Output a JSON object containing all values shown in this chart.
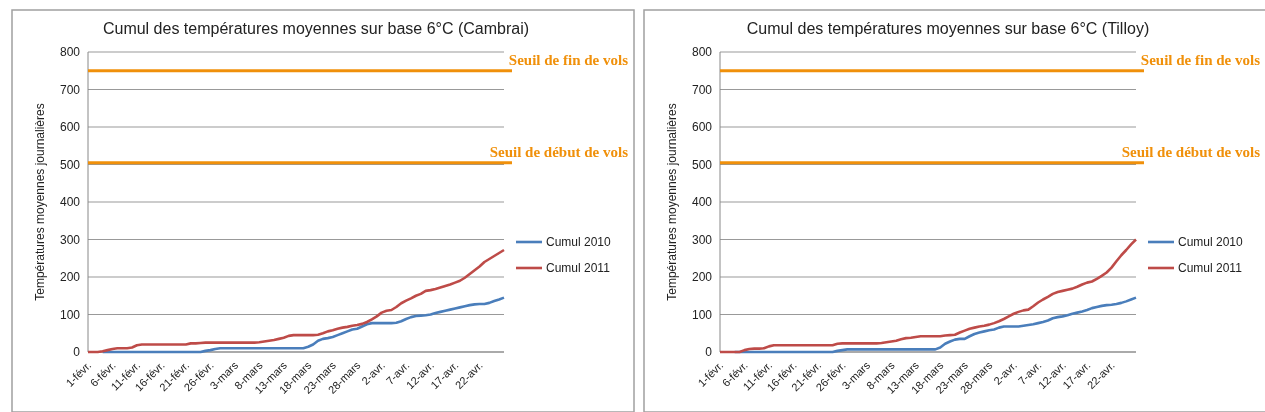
{
  "chart_data": [
    {
      "type": "line",
      "title": "Cumul des températures moyennes sur base 6°C (Cambrai)",
      "ylabel": "Températures moyennes journalières",
      "categories": [
        "1-févr.",
        null,
        null,
        null,
        null,
        "6-févr.",
        null,
        null,
        null,
        null,
        "11-févr.",
        null,
        null,
        null,
        null,
        "16-févr.",
        null,
        null,
        null,
        null,
        "21-févr.",
        null,
        null,
        null,
        null,
        "26-févr.",
        null,
        null,
        null,
        null,
        "3-mars",
        null,
        null,
        null,
        null,
        "8-mars",
        null,
        null,
        null,
        null,
        "13-mars",
        null,
        null,
        null,
        null,
        "18-mars",
        null,
        null,
        null,
        null,
        "23-mars",
        null,
        null,
        null,
        null,
        "28-mars",
        null,
        null,
        null,
        null,
        "2-avr.",
        null,
        null,
        null,
        null,
        "7-avr.",
        null,
        null,
        null,
        null,
        "12-avr.",
        null,
        null,
        null,
        null,
        "17-avr.",
        null,
        null,
        null,
        null,
        "22-avr.",
        null,
        null,
        null,
        null,
        null
      ],
      "series": [
        {
          "name": "Cumul 2010",
          "color": "#4a7ebb",
          "values": [
            null,
            null,
            null,
            0,
            0,
            0,
            0,
            0,
            0,
            0,
            0,
            0,
            0,
            0,
            0,
            0,
            0,
            0,
            0,
            0,
            0,
            0,
            0,
            0,
            3,
            5,
            8,
            10,
            10,
            10,
            10,
            10,
            10,
            10,
            10,
            10,
            10,
            10,
            10,
            10,
            10,
            10,
            10,
            10,
            10,
            14,
            20,
            30,
            35,
            37,
            40,
            45,
            50,
            55,
            60,
            62,
            68,
            74,
            77,
            77,
            77,
            77,
            77,
            78,
            82,
            88,
            93,
            96,
            97,
            98,
            100,
            104,
            107,
            110,
            113,
            116,
            119,
            122,
            125,
            127,
            128,
            128,
            131,
            136,
            140,
            145
          ]
        },
        {
          "name": "Cumul 2011",
          "color": "#be4b48",
          "values": [
            0,
            0,
            0,
            2,
            5,
            8,
            10,
            10,
            10,
            12,
            18,
            20,
            20,
            20,
            20,
            20,
            20,
            20,
            20,
            20,
            20,
            23,
            23,
            24,
            25,
            25,
            25,
            25,
            25,
            25,
            25,
            25,
            25,
            25,
            25,
            26,
            28,
            30,
            32,
            35,
            38,
            43,
            45,
            45,
            45,
            45,
            45,
            46,
            50,
            55,
            58,
            62,
            65,
            67,
            70,
            72,
            75,
            80,
            87,
            95,
            105,
            110,
            112,
            120,
            130,
            137,
            143,
            150,
            155,
            163,
            165,
            168,
            172,
            176,
            180,
            185,
            190,
            198,
            208,
            218,
            228,
            240,
            248,
            256,
            264,
            272
          ]
        }
      ],
      "ylim": [
        0,
        800
      ],
      "yticks": [
        0,
        100,
        200,
        300,
        400,
        500,
        600,
        700,
        800
      ],
      "grid": "y",
      "legend": "right",
      "ref_lines": [
        {
          "axis": "y",
          "value": 750,
          "label": "Seuil de fin de vols",
          "color": "#f0900a"
        },
        {
          "axis": "y",
          "value": 505,
          "label": "Seuil de début de vols",
          "color": "#f0900a"
        }
      ]
    },
    {
      "type": "line",
      "title": "Cumul des températures moyennes sur base 6°C (Tilloy)",
      "ylabel": "Températures moyennes journalières",
      "categories": [
        "1-févr.",
        null,
        null,
        null,
        null,
        "6-févr.",
        null,
        null,
        null,
        null,
        "11-févr.",
        null,
        null,
        null,
        null,
        "16-févr.",
        null,
        null,
        null,
        null,
        "21-févr.",
        null,
        null,
        null,
        null,
        "26-févr.",
        null,
        null,
        null,
        null,
        "3-mars",
        null,
        null,
        null,
        null,
        "8-mars",
        null,
        null,
        null,
        null,
        "13-mars",
        null,
        null,
        null,
        null,
        "18-mars",
        null,
        null,
        null,
        null,
        "23-mars",
        null,
        null,
        null,
        null,
        "28-mars",
        null,
        null,
        null,
        null,
        "2-avr.",
        null,
        null,
        null,
        null,
        "7-avr.",
        null,
        null,
        null,
        null,
        "12-avr.",
        null,
        null,
        null,
        null,
        "17-avr.",
        null,
        null,
        null,
        null,
        "22-avr.",
        null,
        null,
        null,
        null,
        null
      ],
      "series": [
        {
          "name": "Cumul 2010",
          "color": "#4a7ebb",
          "values": [
            null,
            null,
            null,
            0,
            0,
            0,
            0,
            0,
            0,
            0,
            0,
            0,
            0,
            0,
            0,
            0,
            0,
            0,
            0,
            0,
            0,
            0,
            0,
            0,
            3,
            5,
            7,
            7,
            7,
            7,
            7,
            7,
            7,
            7,
            7,
            7,
            7,
            7,
            7,
            7,
            7,
            7,
            7,
            7,
            7,
            12,
            22,
            28,
            33,
            35,
            35,
            42,
            48,
            52,
            55,
            58,
            60,
            65,
            68,
            68,
            68,
            68,
            70,
            72,
            74,
            77,
            80,
            84,
            90,
            93,
            95,
            98,
            102,
            105,
            108,
            112,
            117,
            120,
            123,
            125,
            126,
            128,
            131,
            135,
            140,
            145
          ]
        },
        {
          "name": "Cumul 2011",
          "color": "#be4b48",
          "values": [
            0,
            0,
            0,
            0,
            0,
            5,
            8,
            9,
            9,
            10,
            15,
            18,
            18,
            18,
            18,
            18,
            18,
            18,
            18,
            18,
            18,
            18,
            18,
            18,
            22,
            23,
            23,
            23,
            23,
            23,
            23,
            23,
            23,
            24,
            26,
            28,
            30,
            34,
            37,
            38,
            40,
            42,
            42,
            42,
            42,
            42,
            44,
            45,
            46,
            52,
            57,
            62,
            65,
            68,
            70,
            73,
            77,
            82,
            88,
            95,
            102,
            107,
            111,
            113,
            122,
            132,
            140,
            147,
            155,
            160,
            163,
            166,
            169,
            174,
            180,
            185,
            188,
            195,
            203,
            212,
            225,
            242,
            258,
            272,
            287,
            300
          ]
        }
      ],
      "ylim": [
        0,
        800
      ],
      "yticks": [
        0,
        100,
        200,
        300,
        400,
        500,
        600,
        700,
        800
      ],
      "grid": "y",
      "legend": "right",
      "ref_lines": [
        {
          "axis": "y",
          "value": 750,
          "label": "Seuil de fin de vols",
          "color": "#f0900a"
        },
        {
          "axis": "y",
          "value": 505,
          "label": "Seuil de début de vols",
          "color": "#f0900a"
        }
      ]
    }
  ]
}
